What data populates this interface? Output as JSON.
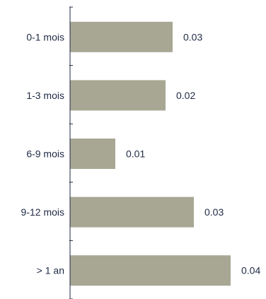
{
  "chart_data": {
    "type": "bar",
    "orientation": "horizontal",
    "title": "",
    "xlabel": "",
    "ylabel": "",
    "categories": [
      "0-1 mois",
      "1-3 mois",
      "6-9 mois",
      "9-12 mois",
      "> 1 an"
    ],
    "values": [
      0.03,
      0.02,
      0.01,
      0.03,
      0.04
    ],
    "value_labels": [
      "0.03",
      "0.02",
      "0.01",
      "0.03",
      "0.04"
    ],
    "bar_color": "#a7a794",
    "axis_color": "#1f2a44",
    "text_color": "#1f2a44",
    "grid": false,
    "legend": "none"
  }
}
